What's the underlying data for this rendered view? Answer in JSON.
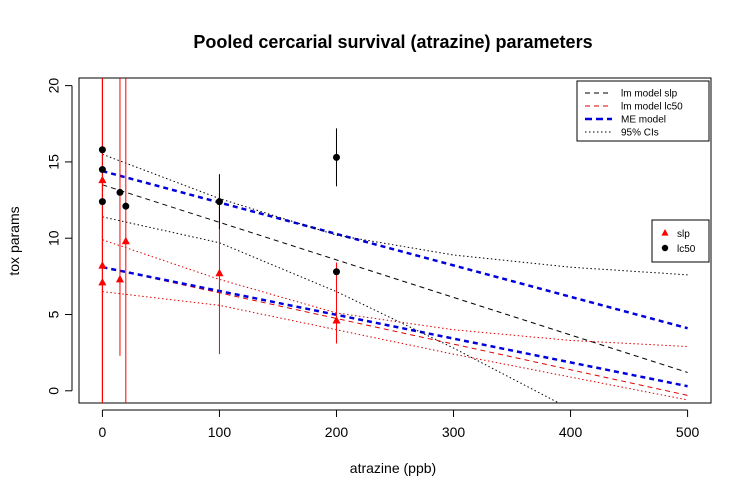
{
  "chart_data": {
    "type": "scatter",
    "title": "Pooled cercarial survival (atrazine) parameters",
    "xlabel": "atrazine (ppb)",
    "ylabel": "tox params",
    "xlim": [
      -20,
      520
    ],
    "ylim": [
      -0.8,
      20.5
    ],
    "x_ticks": [
      0,
      100,
      200,
      300,
      400,
      500
    ],
    "y_ticks": [
      0,
      5,
      10,
      15,
      20
    ],
    "grid": false,
    "legend_lines": {
      "placement": "top-right",
      "entries": [
        {
          "label": "lm model slp",
          "color": "#000000",
          "style": "dashed"
        },
        {
          "label": "lm model lc50",
          "color": "#dd0000",
          "style": "dashed"
        },
        {
          "label": "ME model",
          "color": "#0000dd",
          "style": "dashed-thick"
        },
        {
          "label": "95% CIs",
          "color": "#000000",
          "style": "dotted"
        }
      ]
    },
    "legend_points": {
      "placement": "right",
      "entries": [
        {
          "label": "slp",
          "color": "#ff0000",
          "marker": "triangle"
        },
        {
          "label": "lc50",
          "color": "#000000",
          "marker": "circle"
        }
      ]
    },
    "slp_points": {
      "color": "#ff0000",
      "marker": "triangle",
      "x": [
        0,
        0,
        0,
        15,
        20,
        100,
        200
      ],
      "y": [
        13.8,
        8.2,
        7.1,
        7.3,
        9.8,
        7.7,
        4.6
      ],
      "error_low": [
        -2.0,
        -2.0,
        -2.0,
        2.3,
        -2.0,
        2.4,
        3.1
      ],
      "error_high": [
        21.5,
        21.5,
        21.5,
        21.5,
        21.5,
        12.9,
        8.4
      ]
    },
    "lc50_points": {
      "color": "#000000",
      "marker": "circle",
      "x": [
        0,
        0,
        0,
        15,
        20,
        100,
        200,
        200
      ],
      "y": [
        15.8,
        14.5,
        12.4,
        13.0,
        12.1,
        12.4,
        15.3,
        7.8
      ],
      "error_low": [
        null,
        null,
        null,
        null,
        null,
        10.6,
        13.4,
        null
      ],
      "error_high": [
        null,
        null,
        null,
        null,
        null,
        14.2,
        17.2,
        null
      ]
    },
    "lines": [
      {
        "name": "lm model slp",
        "color": "#000000",
        "style": "dashed",
        "width": 1,
        "x": [
          0,
          500
        ],
        "y": [
          13.5,
          1.2
        ]
      },
      {
        "name": "lm model lc50",
        "color": "#dd0000",
        "style": "dashed",
        "width": 1,
        "x": [
          0,
          500
        ],
        "y": [
          8.1,
          -0.3
        ]
      },
      {
        "name": "ME model lc50",
        "color": "#0000dd",
        "style": "dashed",
        "width": 2.5,
        "x": [
          0,
          500
        ],
        "y": [
          14.4,
          4.1
        ]
      },
      {
        "name": "ME model slp",
        "color": "#0000dd",
        "style": "dashed",
        "width": 2.5,
        "x": [
          0,
          500
        ],
        "y": [
          8.1,
          0.3
        ]
      },
      {
        "color": "#000000",
        "style": "dotted",
        "width": 1,
        "x": [
          0,
          100,
          200,
          300,
          400,
          500
        ],
        "y": [
          15.5,
          12.6,
          10.2,
          8.9,
          8.1,
          7.6
        ]
      },
      {
        "color": "#000000",
        "style": "dotted",
        "width": 1,
        "x": [
          0,
          100,
          200,
          300,
          390
        ],
        "y": [
          11.4,
          9.7,
          6.5,
          2.8,
          -0.8
        ]
      },
      {
        "color": "#dd0000",
        "style": "dotted",
        "width": 1,
        "x": [
          0,
          100,
          200,
          300,
          400,
          500
        ],
        "y": [
          9.9,
          7.3,
          5.1,
          4.0,
          3.3,
          2.9
        ]
      },
      {
        "color": "#dd0000",
        "style": "dotted",
        "width": 1,
        "x": [
          0,
          100,
          200,
          300,
          400,
          500
        ],
        "y": [
          6.5,
          5.6,
          4.0,
          2.4,
          0.9,
          -0.6
        ]
      }
    ]
  }
}
